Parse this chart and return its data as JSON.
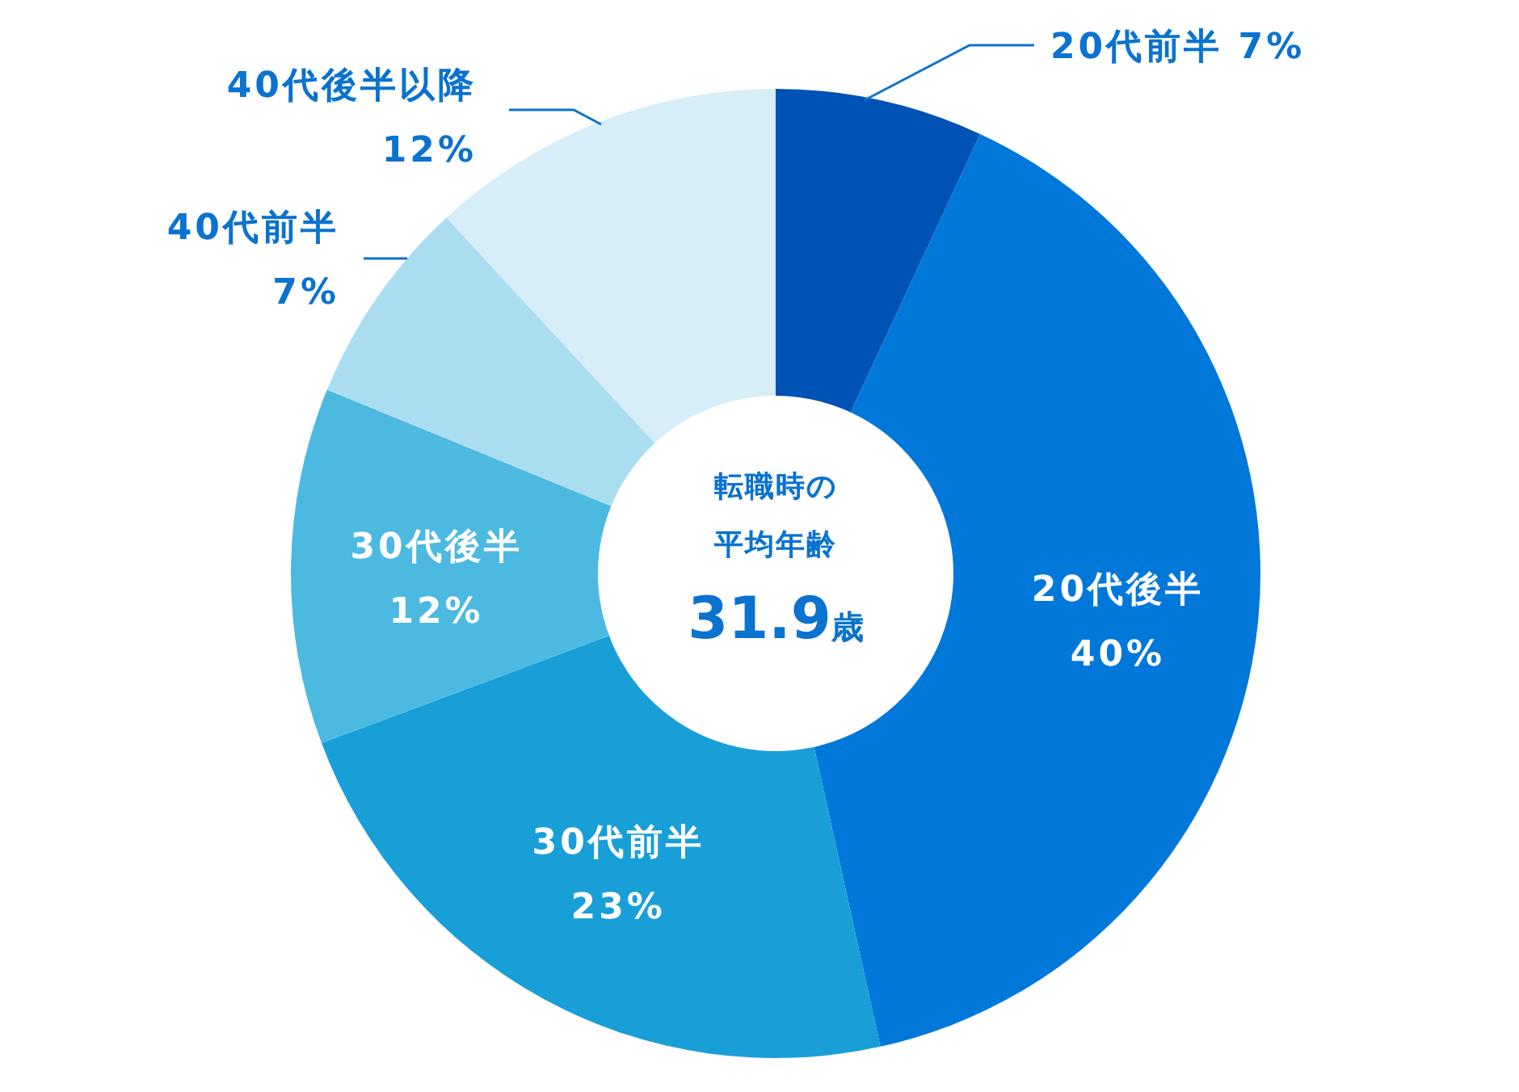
{
  "chart_data": {
    "type": "donut",
    "categories": [
      "20代前半",
      "20代後半",
      "30代前半",
      "30代後半",
      "40代前半",
      "40代後半以降"
    ],
    "values": [
      7,
      40,
      23,
      12,
      7,
      12
    ],
    "value_labels": [
      "7%",
      "40%",
      "23%",
      "12%",
      "7%",
      "12%"
    ],
    "colors": [
      "#0052b5",
      "#0078da",
      "#189fd8",
      "#4cb9e1",
      "#abddf1",
      "#d7edf8"
    ],
    "annotations": [
      "転職時の",
      "平均年齢",
      "31.9歳"
    ]
  }
}
